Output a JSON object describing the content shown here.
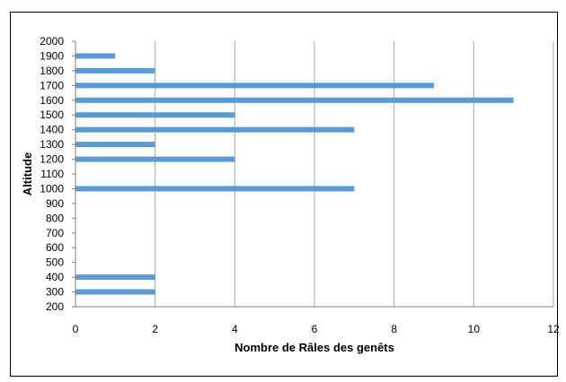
{
  "chart_data": {
    "type": "bar",
    "orientation": "horizontal",
    "title": "",
    "xlabel": "Nombre de Râles des genêts",
    "ylabel": "Altitude",
    "xlim": [
      0,
      12
    ],
    "x_ticks": [
      0,
      2,
      4,
      6,
      8,
      10,
      12
    ],
    "ylim": [
      200,
      2000
    ],
    "y_ticks": [
      200,
      300,
      400,
      500,
      600,
      700,
      800,
      900,
      1000,
      1100,
      1200,
      1300,
      1400,
      1500,
      1600,
      1700,
      1800,
      1900,
      2000
    ],
    "grid": "vertical",
    "legend": "none",
    "bar_color": "#5b9bd5",
    "bars": [
      {
        "altitude": 300,
        "value": 2
      },
      {
        "altitude": 400,
        "value": 2
      },
      {
        "altitude": 1000,
        "value": 7
      },
      {
        "altitude": 1200,
        "value": 4
      },
      {
        "altitude": 1300,
        "value": 2
      },
      {
        "altitude": 1400,
        "value": 7
      },
      {
        "altitude": 1500,
        "value": 4
      },
      {
        "altitude": 1600,
        "value": 11
      },
      {
        "altitude": 1700,
        "value": 9
      },
      {
        "altitude": 1800,
        "value": 2
      },
      {
        "altitude": 1900,
        "value": 1
      }
    ]
  }
}
